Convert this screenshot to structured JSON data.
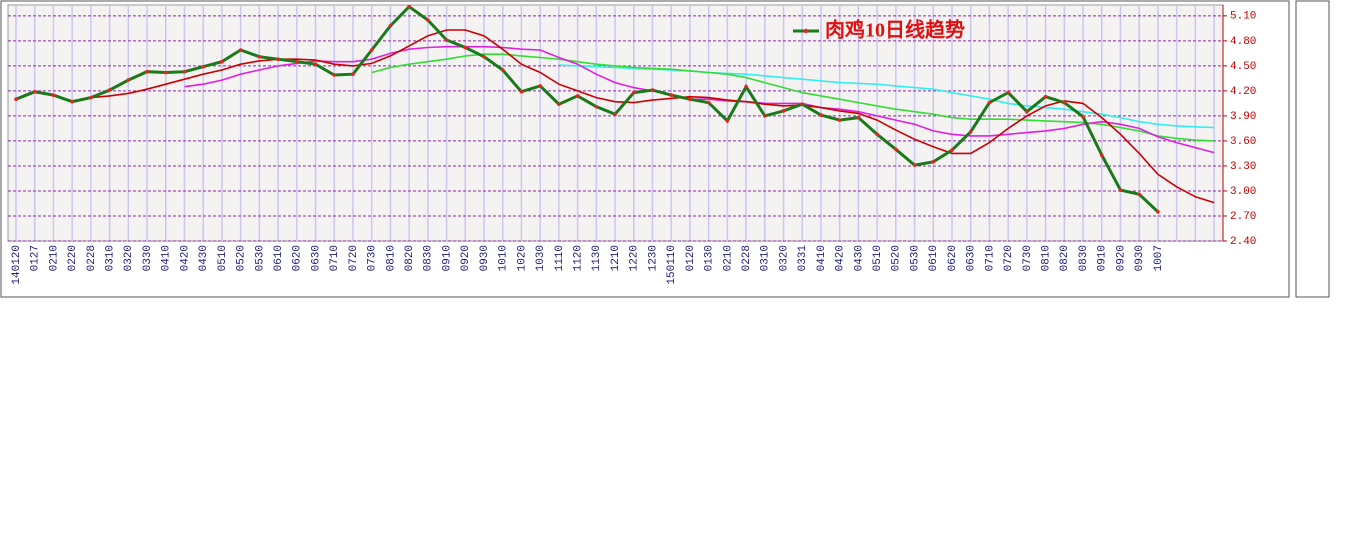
{
  "chart_data": {
    "type": "line",
    "categories": [
      "140120",
      "0127",
      "0210",
      "0220",
      "0228",
      "0310",
      "0320",
      "0330",
      "0410",
      "0420",
      "0430",
      "0510",
      "0520",
      "0530",
      "0610",
      "0620",
      "0630",
      "0710",
      "0720",
      "0730",
      "0810",
      "0820",
      "0830",
      "0910",
      "0920",
      "0930",
      "1010",
      "1020",
      "1030",
      "1110",
      "1120",
      "1130",
      "1210",
      "1220",
      "1230",
      "150110",
      "0120",
      "0130",
      "0210",
      "0228",
      "0310",
      "0320",
      "0331",
      "0410",
      "0420",
      "0430",
      "0510",
      "0520",
      "0530",
      "0610",
      "0620",
      "0630",
      "0710",
      "0720",
      "0730",
      "0810",
      "0820",
      "0830",
      "0910",
      "0920",
      "0930",
      "1007",
      null,
      null,
      null
    ],
    "series": [
      {
        "name": "肉鸡10日线趋势",
        "color": "#1a7a1a",
        "marker_color": "#ee2020",
        "values": [
          4.1,
          4.19,
          4.15,
          4.07,
          4.12,
          4.21,
          4.33,
          4.43,
          4.42,
          4.43,
          4.49,
          4.55,
          4.69,
          4.61,
          4.58,
          4.55,
          4.52,
          4.39,
          4.4,
          4.69,
          4.98,
          5.21,
          5.05,
          4.81,
          4.72,
          4.61,
          4.45,
          4.19,
          4.26,
          4.04,
          4.14,
          4.01,
          3.92,
          4.18,
          4.21,
          4.15,
          4.1,
          4.06,
          3.84,
          4.25,
          3.9,
          3.96,
          4.04,
          3.91,
          3.85,
          3.88,
          3.68,
          3.5,
          3.31,
          3.35,
          3.49,
          3.71,
          4.06,
          4.18,
          3.95,
          4.13,
          4.06,
          3.89,
          3.43,
          3.01,
          2.96,
          2.75,
          null,
          null,
          null
        ]
      },
      {
        "color": "#cc0000",
        "values": [
          4.1,
          4.18,
          4.15,
          4.08,
          4.12,
          4.14,
          4.17,
          4.22,
          4.28,
          4.34,
          4.4,
          4.45,
          4.52,
          4.56,
          4.58,
          4.58,
          4.57,
          4.52,
          4.5,
          4.53,
          4.62,
          4.74,
          4.86,
          4.93,
          4.93,
          4.86,
          4.7,
          4.52,
          4.42,
          4.28,
          4.2,
          4.12,
          4.07,
          4.06,
          4.09,
          4.11,
          4.13,
          4.12,
          4.09,
          4.07,
          4.04,
          4.02,
          4.03,
          4.0,
          3.96,
          3.93,
          3.85,
          3.73,
          3.62,
          3.53,
          3.45,
          3.45,
          3.58,
          3.75,
          3.9,
          4.02,
          4.08,
          4.05,
          3.88,
          3.68,
          3.45,
          3.2,
          3.05,
          2.93,
          2.86
        ]
      },
      {
        "color": "#e020e0",
        "values": [
          null,
          null,
          null,
          null,
          null,
          null,
          null,
          null,
          null,
          4.25,
          4.28,
          4.33,
          4.4,
          4.45,
          4.5,
          4.53,
          4.56,
          4.55,
          4.55,
          4.58,
          4.65,
          4.7,
          4.72,
          4.73,
          4.73,
          4.73,
          4.72,
          4.7,
          4.69,
          4.6,
          4.52,
          4.4,
          4.3,
          4.24,
          4.2,
          4.15,
          4.1,
          4.1,
          4.08,
          4.07,
          4.05,
          4.05,
          4.05,
          4.0,
          3.98,
          3.95,
          3.9,
          3.85,
          3.8,
          3.72,
          3.68,
          3.66,
          3.66,
          3.68,
          3.7,
          3.72,
          3.75,
          3.8,
          3.83,
          3.8,
          3.75,
          3.65,
          3.58,
          3.52,
          3.46
        ]
      },
      {
        "color": "#33dd33",
        "values": [
          null,
          null,
          null,
          null,
          null,
          null,
          null,
          null,
          null,
          null,
          null,
          null,
          null,
          null,
          null,
          null,
          null,
          null,
          null,
          4.42,
          4.48,
          4.52,
          4.55,
          4.58,
          4.62,
          4.64,
          4.64,
          4.62,
          4.6,
          4.58,
          4.55,
          4.52,
          4.5,
          4.48,
          4.47,
          4.46,
          4.44,
          4.42,
          4.4,
          4.36,
          4.3,
          4.24,
          4.18,
          4.14,
          4.1,
          4.06,
          4.02,
          3.98,
          3.95,
          3.92,
          3.88,
          3.86,
          3.86,
          3.86,
          3.85,
          3.84,
          3.83,
          3.82,
          3.8,
          3.76,
          3.72,
          3.66,
          3.63,
          3.61,
          3.6
        ]
      },
      {
        "color": "#33eeee",
        "values": [
          null,
          null,
          null,
          null,
          null,
          null,
          null,
          null,
          null,
          null,
          null,
          null,
          null,
          null,
          null,
          null,
          null,
          null,
          null,
          null,
          null,
          null,
          null,
          null,
          null,
          null,
          null,
          null,
          null,
          4.51,
          4.5,
          4.49,
          4.48,
          4.47,
          4.46,
          4.45,
          4.44,
          4.42,
          4.41,
          4.4,
          4.38,
          4.36,
          4.34,
          4.32,
          4.3,
          4.29,
          4.28,
          4.26,
          4.24,
          4.22,
          4.18,
          4.14,
          4.1,
          4.05,
          4.02,
          4.0,
          3.98,
          3.95,
          3.92,
          3.88,
          3.83,
          3.8,
          3.78,
          3.77,
          3.76
        ]
      }
    ],
    "ylim": [
      2.4,
      5.23
    ],
    "yticks": [
      {
        "value": 2.4,
        "label": "2.40"
      },
      {
        "value": 2.7,
        "label": "2.70"
      },
      {
        "value": 3.0,
        "label": "3.00"
      },
      {
        "value": 3.3,
        "label": "3.30"
      },
      {
        "value": 3.6,
        "label": "3.60"
      },
      {
        "value": 3.9,
        "label": "3.90"
      },
      {
        "value": 4.2,
        "label": "4.20"
      },
      {
        "value": 4.5,
        "label": "4.50"
      },
      {
        "value": 4.8,
        "label": "4.80"
      },
      {
        "value": 5.1,
        "label": "5.10"
      }
    ],
    "grid": true
  }
}
